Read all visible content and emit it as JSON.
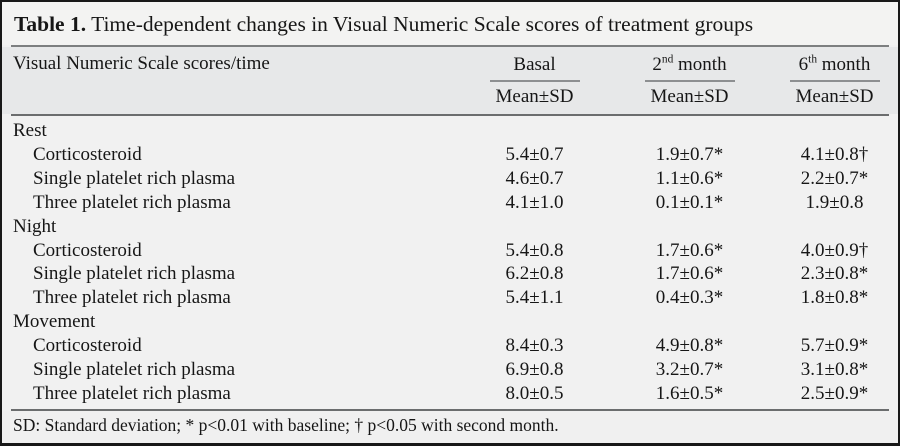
{
  "title": {
    "bold": "Table 1.",
    "text": " Time-dependent changes in Visual Numeric Scale scores of treatment groups"
  },
  "colors": {
    "outer_border": "#181818",
    "card_bg": "#f1f1f1",
    "title_bg": "#f3f3f2",
    "header_bg": "#e7e8e9",
    "rule": "#7d7f80",
    "text": "#161616"
  },
  "table": {
    "row_header_label": "Visual Numeric Scale scores/time",
    "columns": [
      {
        "pre": "Basal",
        "sup": "",
        "post": "",
        "subheader": "Mean±SD"
      },
      {
        "pre": "2",
        "sup": "nd",
        "post": " month",
        "subheader": "Mean±SD"
      },
      {
        "pre": "6",
        "sup": "th",
        "post": " month",
        "subheader": "Mean±SD"
      }
    ],
    "sections": [
      {
        "name": "Rest",
        "rows": [
          {
            "label": "Corticosteroid",
            "basal": "5.4±0.7",
            "month2": "1.9±0.7*",
            "month6": "4.1±0.8†"
          },
          {
            "label": "Single platelet rich plasma",
            "basal": "4.6±0.7",
            "month2": "1.1±0.6*",
            "month6": "2.2±0.7*"
          },
          {
            "label": "Three platelet rich plasma",
            "basal": "4.1±1.0",
            "month2": "0.1±0.1*",
            "month6": "1.9±0.8"
          }
        ]
      },
      {
        "name": "Night",
        "rows": [
          {
            "label": "Corticosteroid",
            "basal": "5.4±0.8",
            "month2": "1.7±0.6*",
            "month6": "4.0±0.9†"
          },
          {
            "label": "Single platelet rich plasma",
            "basal": "6.2±0.8",
            "month2": "1.7±0.6*",
            "month6": "2.3±0.8*"
          },
          {
            "label": "Three platelet rich plasma",
            "basal": "5.4±1.1",
            "month2": "0.4±0.3*",
            "month6": "1.8±0.8*"
          }
        ]
      },
      {
        "name": "Movement",
        "rows": [
          {
            "label": "Corticosteroid",
            "basal": "8.4±0.3",
            "month2": "4.9±0.8*",
            "month6": "5.7±0.9*"
          },
          {
            "label": "Single platelet rich plasma",
            "basal": "6.9±0.8",
            "month2": "3.2±0.7*",
            "month6": "3.1±0.8*"
          },
          {
            "label": "Three platelet rich plasma",
            "basal": "8.0±0.5",
            "month2": "1.6±0.5*",
            "month6": "2.5±0.9*"
          }
        ]
      }
    ]
  },
  "footnote": "SD: Standard deviation; * p<0.01 with baseline; † p<0.05 with second month."
}
